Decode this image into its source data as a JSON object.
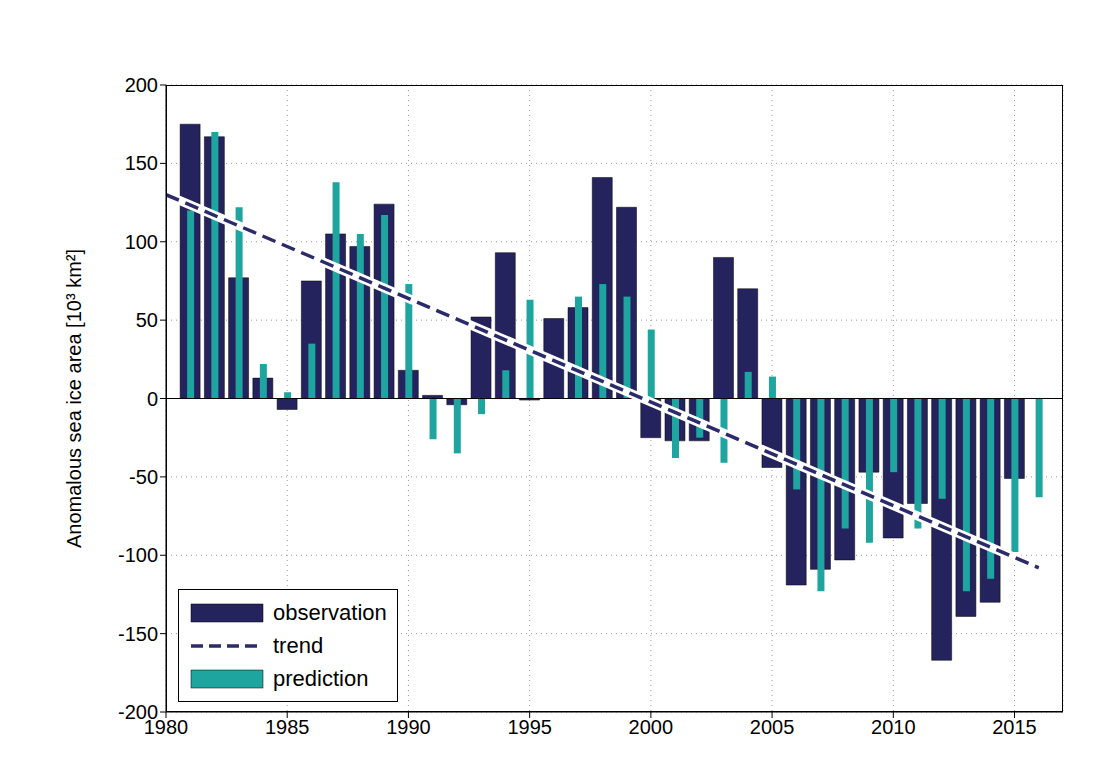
{
  "chart_data": {
    "type": "bar",
    "y_label": "Anomalous sea ice area [10³ km²]",
    "x": [
      1981,
      1982,
      1983,
      1984,
      1985,
      1986,
      1987,
      1988,
      1989,
      1990,
      1991,
      1992,
      1993,
      1994,
      1995,
      1996,
      1997,
      1998,
      1999,
      2000,
      2001,
      2002,
      2003,
      2004,
      2005,
      2006,
      2007,
      2008,
      2009,
      2010,
      2011,
      2012,
      2013,
      2014,
      2015,
      2016
    ],
    "series": [
      {
        "name": "observation",
        "type": "bar",
        "color": "#25235e",
        "values": [
          175,
          167,
          77,
          13,
          -7,
          75,
          105,
          97,
          124,
          18,
          2,
          -4,
          52,
          93,
          -1,
          51,
          58,
          141,
          122,
          -25,
          -27,
          -27,
          90,
          70,
          -44,
          -119,
          -109,
          -103,
          -47,
          -89,
          -67,
          -167,
          -139,
          -130,
          -51,
          null
        ]
      },
      {
        "name": "trend",
        "type": "line",
        "line_style": "dashed",
        "color": "#2b2a6b",
        "x": [
          1980,
          2016
        ],
        "values": [
          130,
          -108
        ]
      },
      {
        "name": "prediction",
        "type": "bar",
        "color": "#1ea59f",
        "values": [
          120,
          170,
          122,
          22,
          4,
          35,
          138,
          105,
          117,
          73,
          -26,
          -35,
          -10,
          18,
          63,
          0,
          65,
          73,
          65,
          44,
          -38,
          -25,
          -41,
          17,
          14,
          -58,
          -123,
          -83,
          -92,
          -47,
          -83,
          -64,
          -123,
          -115,
          -98,
          -63
        ]
      }
    ],
    "xlim": [
      1980,
      2017
    ],
    "xticks": [
      1980,
      1985,
      1990,
      1995,
      2000,
      2005,
      2010,
      2015
    ],
    "ylim": [
      -200,
      200
    ],
    "yticks": [
      -200,
      -150,
      -100,
      -50,
      0,
      50,
      100,
      150,
      200
    ],
    "grid": true,
    "legend": "lower left"
  }
}
